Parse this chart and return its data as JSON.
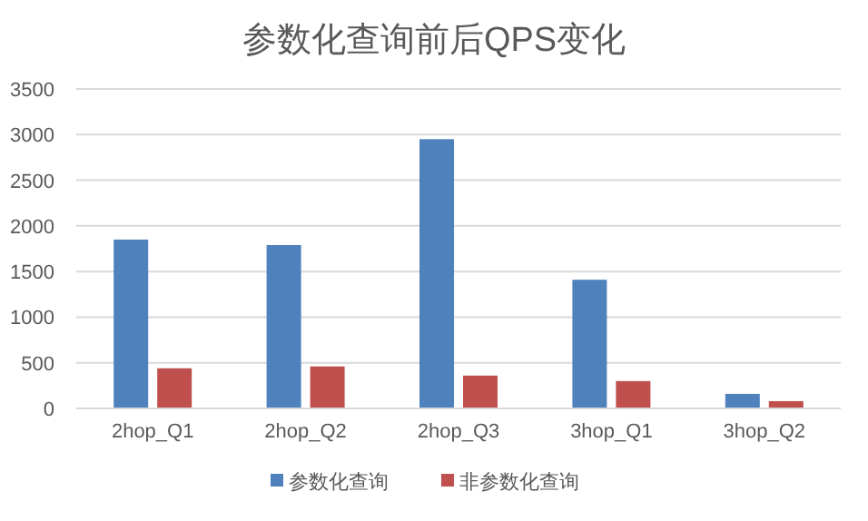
{
  "chart_data": {
    "type": "bar",
    "title": "参数化查询前后QPS变化",
    "categories": [
      "2hop_Q1",
      "2hop_Q2",
      "2hop_Q3",
      "3hop_Q1",
      "3hop_Q2"
    ],
    "series": [
      {
        "name": "参数化查询",
        "color": "#4f81bd",
        "values": [
          1850,
          1790,
          2950,
          1410,
          160
        ]
      },
      {
        "name": "非参数化查询",
        "color": "#c0504d",
        "values": [
          440,
          460,
          360,
          300,
          80
        ]
      }
    ],
    "ylim": [
      0,
      3500
    ],
    "yticks": [
      0,
      500,
      1000,
      1500,
      2000,
      2500,
      3000,
      3500
    ],
    "grid": "y",
    "legend": "bottom"
  }
}
